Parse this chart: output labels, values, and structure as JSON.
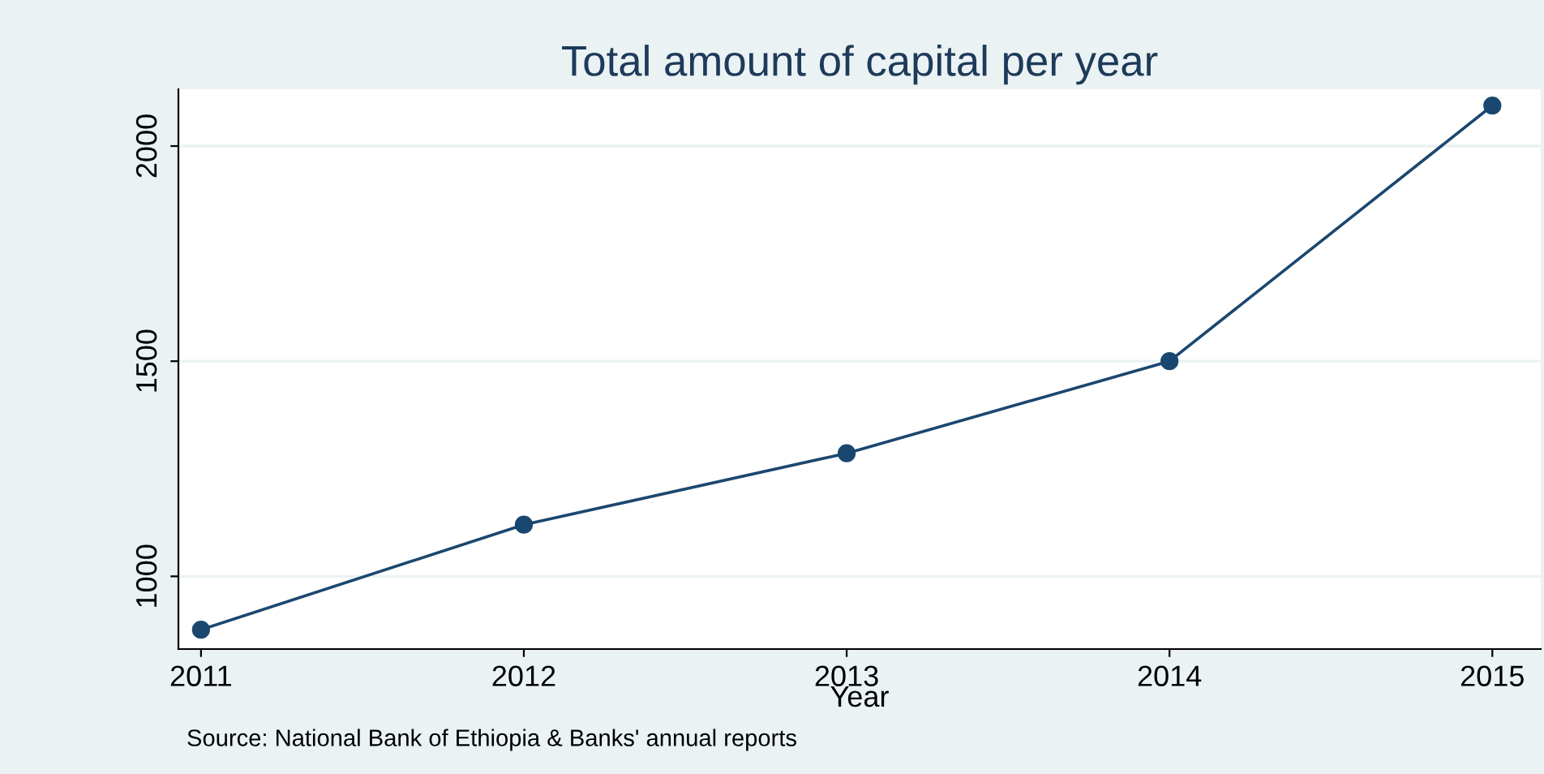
{
  "chart_data": {
    "type": "line",
    "title": "Total amount of capital per year",
    "xlabel": "Year",
    "x": [
      2011,
      2012,
      2013,
      2014,
      2015
    ],
    "series": [
      {
        "color": "#1a476f",
        "values": [
          876,
          1120,
          1286,
          1500,
          2094
        ]
      }
    ],
    "xlim": [
      2010.93,
      2015.15
    ],
    "xticks": [
      2011,
      2012,
      2013,
      2014,
      2015
    ],
    "ylim": [
      831,
      2132
    ],
    "yticks": [
      1000,
      1500,
      2000
    ],
    "grid": "y",
    "marker": "circle",
    "line_style": "solid",
    "legend": false,
    "annotations": [
      "Source: National Bank of Ethiopia & Banks' annual reports"
    ]
  }
}
